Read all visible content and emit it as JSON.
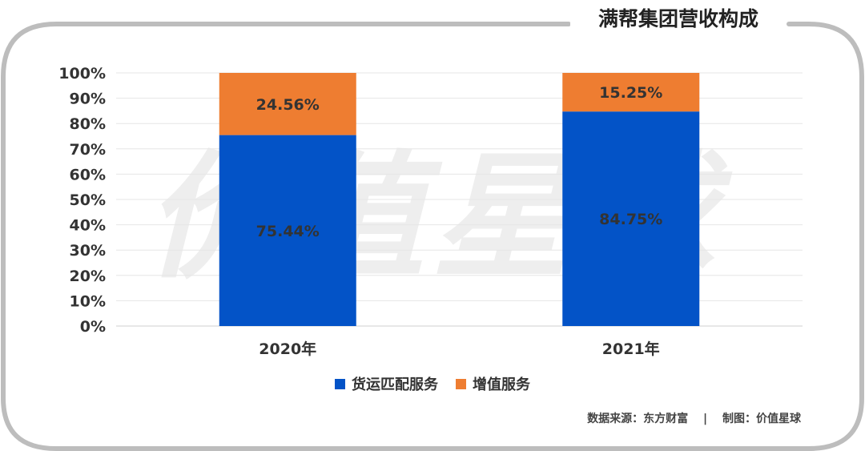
{
  "title": "满帮集团营收构成",
  "source": {
    "source_label": "数据来源：东方财富",
    "separator": "|",
    "made_by": "制图：价值星球"
  },
  "watermark": "价值星球",
  "colors": {
    "series_1": "#0353c7",
    "series_2": "#ee7d31",
    "frame": "#bdbdbd",
    "grid": "#e6e6e6"
  },
  "chart_data": {
    "type": "bar",
    "stacked": true,
    "categories": [
      "2020年",
      "2021年"
    ],
    "series": [
      {
        "name": "货运匹配服务",
        "values": [
          75.44,
          84.75
        ],
        "labels": [
          "75.44%",
          "84.75%"
        ]
      },
      {
        "name": "增值服务",
        "values": [
          24.56,
          15.25
        ],
        "labels": [
          "24.56%",
          "15.25%"
        ]
      }
    ],
    "ylim": [
      0,
      100
    ],
    "yticks": [
      "0%",
      "10%",
      "20%",
      "30%",
      "40%",
      "50%",
      "60%",
      "70%",
      "80%",
      "90%",
      "100%"
    ],
    "grid": true,
    "legend_position": "bottom"
  }
}
